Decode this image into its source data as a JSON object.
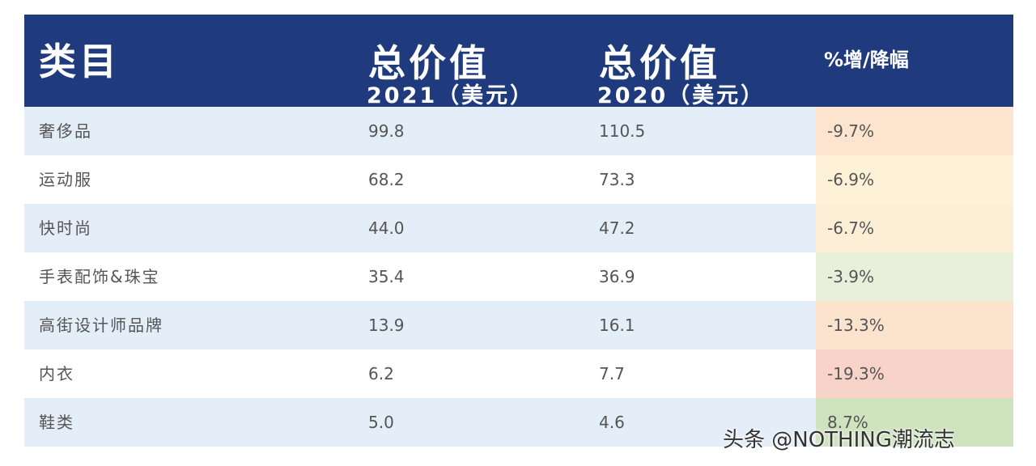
{
  "header": {
    "columns": [
      {
        "title": "类目"
      },
      {
        "title": "总价值",
        "subtitle": "2021（美元）"
      },
      {
        "title": "总价值",
        "subtitle": "2020（美元）"
      },
      {
        "title": "%增/降幅"
      }
    ]
  },
  "table": {
    "rows": [
      [
        "奢侈品",
        "99.8",
        "110.5",
        "-9.7%"
      ],
      [
        "运动服",
        "68.2",
        "73.3",
        "-6.9%"
      ],
      [
        "快时尚",
        "44.0",
        "47.2",
        "-6.7%"
      ],
      [
        "手表配饰&珠宝",
        "35.4",
        "36.9",
        "-3.9%"
      ],
      [
        "高街设计师品牌",
        "13.9",
        "16.1",
        "-13.3%"
      ],
      [
        "内衣",
        "6.2",
        "7.7",
        "-19.3%"
      ],
      [
        "鞋类",
        "5.0",
        "4.6",
        "8.7%"
      ]
    ]
  },
  "watermark": "头条 @NOTHING潮流志"
}
